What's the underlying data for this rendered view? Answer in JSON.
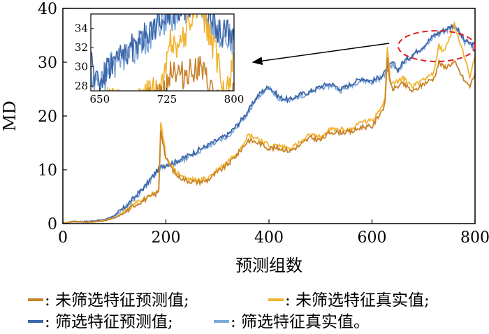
{
  "chart_data": {
    "type": "line",
    "xlabel": "预测组数",
    "ylabel": "MD",
    "xlim": [
      0,
      800
    ],
    "ylim": [
      0,
      40
    ],
    "xticks": [
      "0",
      "200",
      "400",
      "600",
      "800"
    ],
    "yticks": [
      "0",
      "10",
      "20",
      "30",
      "40"
    ],
    "grid": false,
    "legend_position": "bottom",
    "colors": {
      "unscreened_pred": "#c8822a",
      "unscreened_true": "#f2b430",
      "screened_pred": "#3c64a8",
      "screened_true": "#7ea8d8",
      "annotation": "#e02020"
    },
    "series": [
      {
        "name": "未筛选特征预测值",
        "key": "unscreened_pred",
        "x": [
          0,
          20,
          40,
          60,
          80,
          100,
          120,
          140,
          160,
          180,
          186,
          190,
          200,
          220,
          240,
          260,
          280,
          300,
          320,
          340,
          360,
          380,
          400,
          420,
          440,
          460,
          480,
          500,
          520,
          560,
          580,
          600,
          625,
          630,
          635,
          640,
          660,
          680,
          700,
          720,
          730,
          740,
          760,
          780,
          790,
          800
        ],
        "y": [
          0,
          0.4,
          0.3,
          0.3,
          0.5,
          1,
          2,
          3.5,
          4.5,
          5.5,
          6,
          17.5,
          12,
          9,
          8,
          7.7,
          8,
          9.5,
          11,
          13,
          15.5,
          15,
          14,
          14,
          13.5,
          14.5,
          16,
          15.5,
          17,
          17,
          18,
          18,
          22,
          31,
          26,
          25,
          26,
          24.5,
          26,
          27,
          30,
          29,
          30,
          26.5,
          25.5,
          28
        ]
      },
      {
        "name": "未筛选特征真实值",
        "key": "unscreened_true",
        "x": [
          0,
          20,
          40,
          60,
          80,
          100,
          120,
          140,
          160,
          180,
          186,
          190,
          200,
          220,
          240,
          260,
          280,
          300,
          320,
          340,
          360,
          380,
          400,
          420,
          440,
          460,
          480,
          500,
          520,
          560,
          580,
          600,
          625,
          630,
          635,
          640,
          660,
          680,
          700,
          720,
          730,
          740,
          760,
          780,
          790,
          800
        ],
        "y": [
          0,
          0.4,
          0.3,
          0.3,
          0.6,
          1.1,
          2.2,
          3.7,
          4.8,
          5.8,
          6.3,
          18.5,
          12.5,
          9.5,
          8.4,
          8,
          8.4,
          10,
          11.5,
          13.5,
          16.5,
          15.8,
          14.5,
          14.5,
          14,
          15,
          16.5,
          16,
          17.5,
          17.5,
          19,
          19,
          23,
          33,
          27,
          26,
          27,
          25.5,
          27,
          28,
          33,
          32,
          37,
          31,
          27,
          31
        ]
      },
      {
        "name": "筛选特征预测值",
        "key": "screened_pred",
        "x": [
          0,
          20,
          40,
          60,
          80,
          100,
          120,
          140,
          160,
          180,
          190,
          200,
          220,
          240,
          260,
          280,
          300,
          320,
          340,
          360,
          380,
          400,
          420,
          440,
          460,
          480,
          500,
          520,
          540,
          560,
          580,
          600,
          620,
          640,
          650,
          660,
          680,
          700,
          720,
          740,
          760,
          780,
          800
        ],
        "y": [
          0,
          0.4,
          0.4,
          0.5,
          0.7,
          1.5,
          3,
          5,
          7,
          9.5,
          10.5,
          11,
          11.5,
          12.5,
          13.5,
          14.5,
          15.5,
          16.5,
          18.5,
          21,
          24,
          25.5,
          23.5,
          23,
          24,
          24.5,
          25.5,
          26,
          25,
          26,
          27,
          26.5,
          27.5,
          30,
          28.5,
          30,
          31.5,
          33,
          35,
          36,
          37,
          34,
          33
        ]
      },
      {
        "name": "筛选特征真实值",
        "key": "screened_true",
        "x": [
          0,
          20,
          40,
          60,
          80,
          100,
          120,
          140,
          160,
          180,
          190,
          200,
          220,
          240,
          260,
          280,
          300,
          320,
          340,
          360,
          380,
          400,
          420,
          440,
          460,
          480,
          500,
          520,
          540,
          560,
          580,
          600,
          620,
          640,
          650,
          660,
          680,
          700,
          720,
          740,
          760,
          780,
          800
        ],
        "y": [
          0,
          0.3,
          0.3,
          0.4,
          0.6,
          1.4,
          2.8,
          4.8,
          6.8,
          9.2,
          10.2,
          10.7,
          11.2,
          12.2,
          13.2,
          14.2,
          15.2,
          16.2,
          18.2,
          20.7,
          23.7,
          25.2,
          23.2,
          22.7,
          23.7,
          24.2,
          25.2,
          25.7,
          24.7,
          25.7,
          26.7,
          26.2,
          27.2,
          29.7,
          28.2,
          29.7,
          31.2,
          32.7,
          34.7,
          35.7,
          36.7,
          33.7,
          32.7
        ]
      }
    ],
    "inset": {
      "xlim": [
        640,
        800
      ],
      "ylim": [
        27.5,
        35.5
      ],
      "xticks": [
        "650",
        "725",
        "800"
      ],
      "yticks": [
        "28",
        "30",
        "32",
        "34"
      ]
    },
    "legend": [
      {
        "key": "unscreened_pred",
        "label": ": 未筛选特征预测值;"
      },
      {
        "key": "unscreened_true",
        "label": ": 未筛选特征真实值;"
      },
      {
        "key": "screened_pred",
        "label": ": 筛选特征预测值;"
      },
      {
        "key": "screened_true",
        "label": ": 筛选特征真实值。"
      }
    ]
  }
}
